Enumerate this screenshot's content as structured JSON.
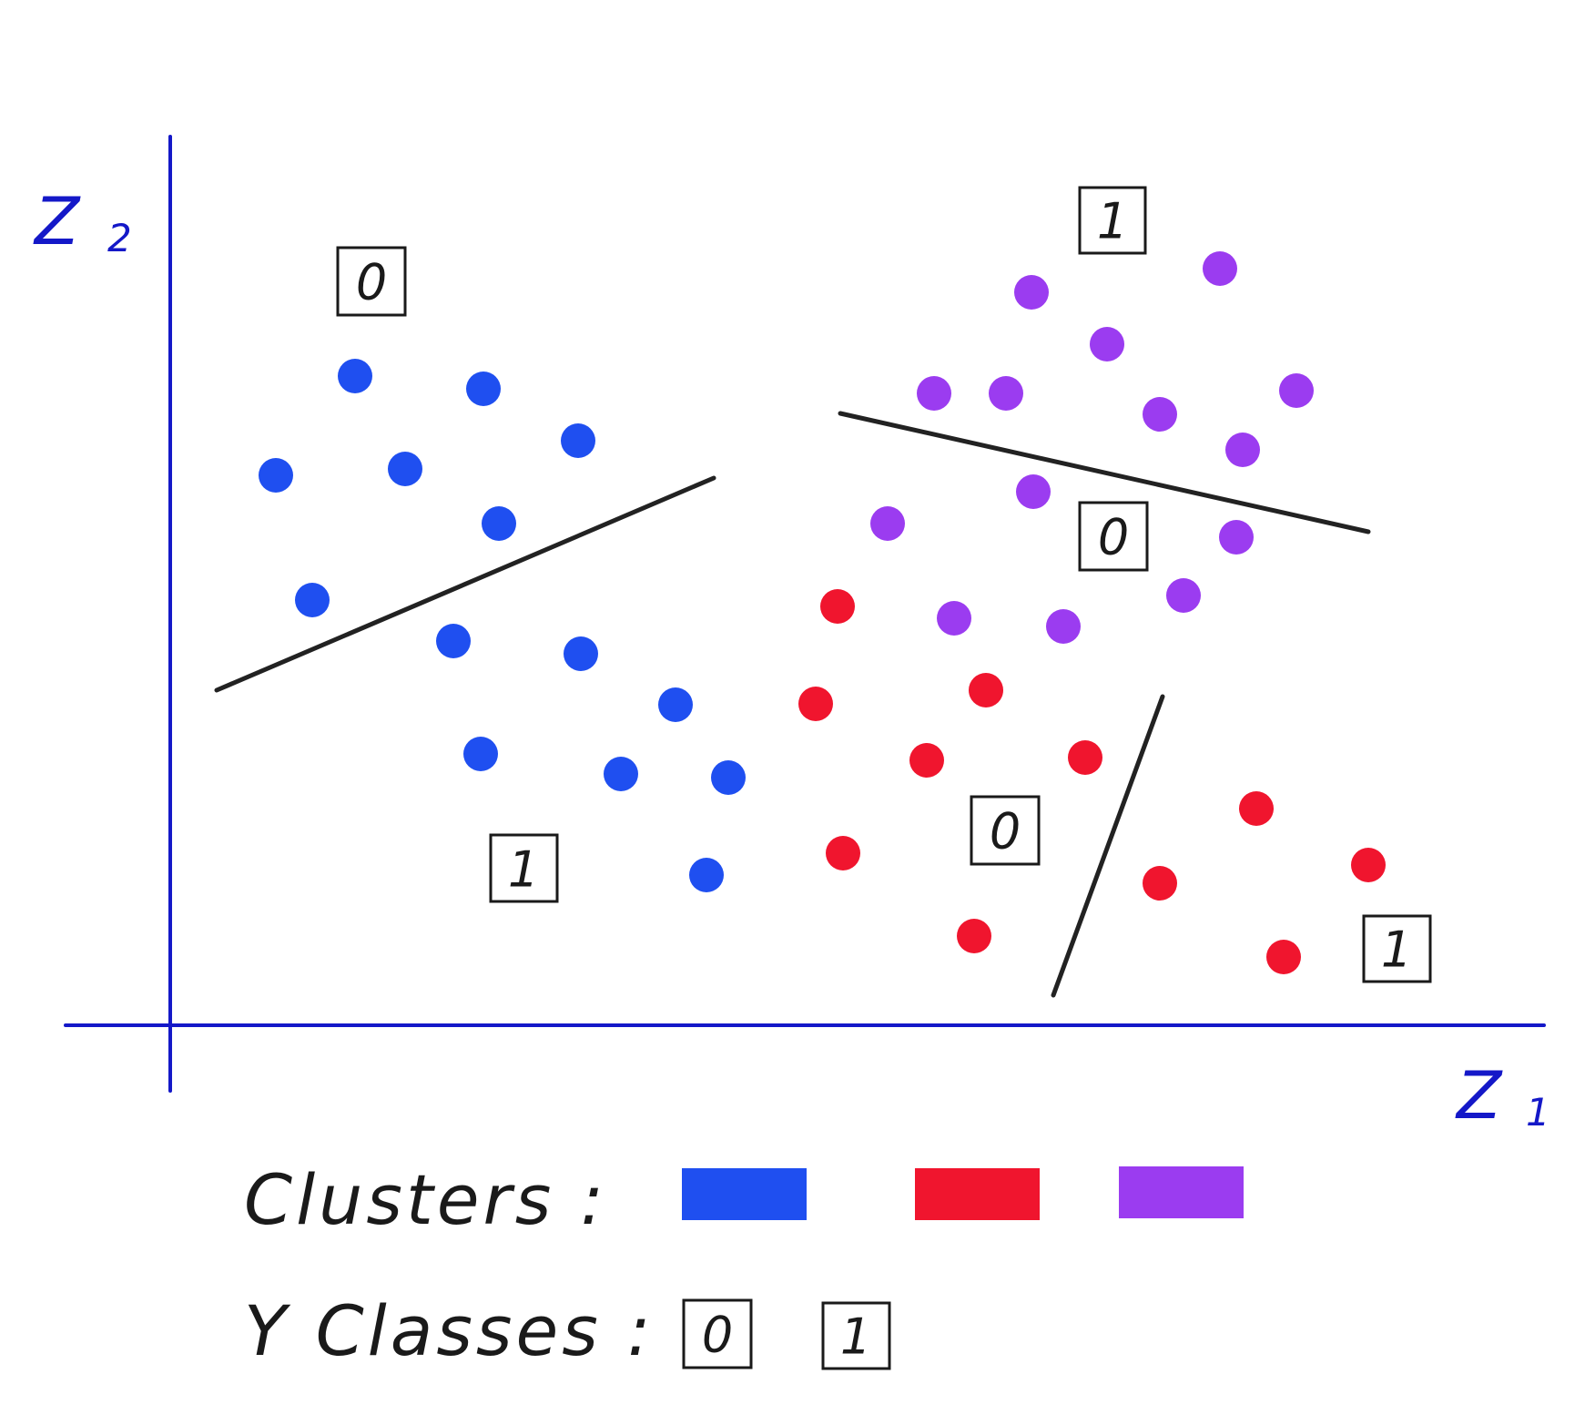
{
  "axes": {
    "x_label": "Z",
    "x_sub": "1",
    "y_label": "Z",
    "y_sub": "2",
    "color": "#1418c8"
  },
  "clusters": [
    {
      "name": "blue",
      "color": "#1f4ff0"
    },
    {
      "name": "red",
      "color": "#f0152e"
    },
    {
      "name": "purple",
      "color": "#9b3cf0"
    }
  ],
  "region_labels": [
    "0",
    "1",
    "1",
    "0",
    "0",
    "1"
  ],
  "legend": {
    "clusters_label": "Clusters :",
    "classes_label": "Y Classes :",
    "class_values": [
      "0",
      "1"
    ]
  }
}
